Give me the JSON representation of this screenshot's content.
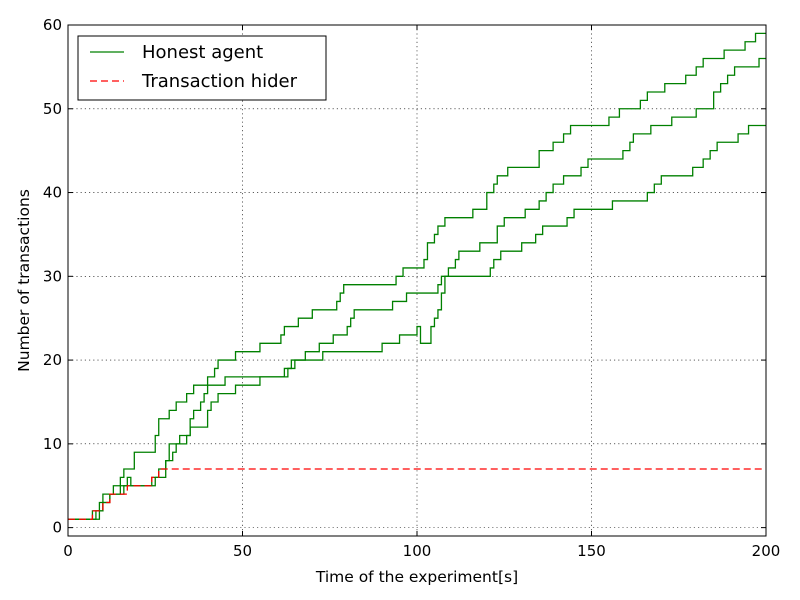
{
  "chart_data": {
    "type": "line",
    "title": "",
    "xlabel": "Time of the experiment[s]",
    "ylabel": "Number of transactions",
    "xlim": [
      0,
      200
    ],
    "ylim": [
      -1,
      60
    ],
    "xticks": [
      0,
      50,
      100,
      150,
      200
    ],
    "yticks": [
      0,
      10,
      20,
      30,
      40,
      50,
      60
    ],
    "grid": true,
    "legend_position": "top-left",
    "legend": [
      {
        "label": "Honest agent",
        "color": "#008000",
        "style": "solid"
      },
      {
        "label": "Transaction hider",
        "color": "#ff0000",
        "style": "dashed"
      }
    ],
    "series": [
      {
        "name": "Honest agent",
        "color": "#008000",
        "style": "solid",
        "step": true,
        "points": [
          [
            0,
            1
          ],
          [
            8,
            1
          ],
          [
            8,
            2
          ],
          [
            10,
            2
          ],
          [
            10,
            4
          ],
          [
            13,
            4
          ],
          [
            13,
            5
          ],
          [
            15,
            5
          ],
          [
            15,
            6
          ],
          [
            16,
            6
          ],
          [
            16,
            7
          ],
          [
            19,
            7
          ],
          [
            19,
            9
          ],
          [
            25,
            9
          ],
          [
            25,
            11
          ],
          [
            26,
            11
          ],
          [
            26,
            13
          ],
          [
            29,
            13
          ],
          [
            29,
            14
          ],
          [
            31,
            14
          ],
          [
            31,
            15
          ],
          [
            34,
            15
          ],
          [
            34,
            16
          ],
          [
            36,
            16
          ],
          [
            36,
            17
          ],
          [
            40,
            17
          ],
          [
            40,
            18
          ],
          [
            42,
            18
          ],
          [
            42,
            19
          ],
          [
            43,
            19
          ],
          [
            43,
            20
          ],
          [
            48,
            20
          ],
          [
            48,
            21
          ],
          [
            55,
            21
          ],
          [
            55,
            22
          ],
          [
            61,
            22
          ],
          [
            61,
            23
          ],
          [
            62,
            23
          ],
          [
            62,
            24
          ],
          [
            66,
            24
          ],
          [
            66,
            25
          ],
          [
            70,
            25
          ],
          [
            70,
            26
          ],
          [
            77,
            26
          ],
          [
            77,
            27
          ],
          [
            78,
            27
          ],
          [
            78,
            28
          ],
          [
            79,
            28
          ],
          [
            79,
            29
          ],
          [
            94,
            29
          ],
          [
            94,
            30
          ],
          [
            96,
            30
          ],
          [
            96,
            31
          ],
          [
            102,
            31
          ],
          [
            102,
            32
          ],
          [
            103,
            32
          ],
          [
            103,
            34
          ],
          [
            105,
            34
          ],
          [
            105,
            35
          ],
          [
            106,
            35
          ],
          [
            106,
            36
          ],
          [
            108,
            36
          ],
          [
            108,
            37
          ],
          [
            116,
            37
          ],
          [
            116,
            38
          ],
          [
            120,
            38
          ],
          [
            120,
            40
          ],
          [
            122,
            40
          ],
          [
            122,
            41
          ],
          [
            123,
            41
          ],
          [
            123,
            42
          ],
          [
            126,
            42
          ],
          [
            126,
            43
          ],
          [
            135,
            43
          ],
          [
            135,
            45
          ],
          [
            139,
            45
          ],
          [
            139,
            46
          ],
          [
            142,
            46
          ],
          [
            142,
            47
          ],
          [
            144,
            47
          ],
          [
            144,
            48
          ],
          [
            155,
            48
          ],
          [
            155,
            49
          ],
          [
            158,
            49
          ],
          [
            158,
            50
          ],
          [
            164,
            50
          ],
          [
            164,
            51
          ],
          [
            166,
            51
          ],
          [
            166,
            52
          ],
          [
            171,
            52
          ],
          [
            171,
            53
          ],
          [
            177,
            53
          ],
          [
            177,
            54
          ],
          [
            180,
            54
          ],
          [
            180,
            55
          ],
          [
            182,
            55
          ],
          [
            182,
            56
          ],
          [
            188,
            56
          ],
          [
            188,
            57
          ],
          [
            194,
            57
          ],
          [
            194,
            58
          ],
          [
            197,
            58
          ],
          [
            197,
            59
          ],
          [
            200,
            59
          ]
        ]
      },
      {
        "name": "",
        "color": "#008000",
        "style": "solid",
        "step": true,
        "points": [
          [
            0,
            1
          ],
          [
            7,
            1
          ],
          [
            7,
            2
          ],
          [
            10,
            2
          ],
          [
            10,
            3
          ],
          [
            12,
            3
          ],
          [
            12,
            4
          ],
          [
            15,
            4
          ],
          [
            15,
            5
          ],
          [
            17,
            5
          ],
          [
            17,
            6
          ],
          [
            18,
            6
          ],
          [
            18,
            5
          ],
          [
            25,
            5
          ],
          [
            25,
            6
          ],
          [
            26,
            6
          ],
          [
            26,
            7
          ],
          [
            28,
            7
          ],
          [
            28,
            8
          ],
          [
            29,
            8
          ],
          [
            29,
            10
          ],
          [
            32,
            10
          ],
          [
            32,
            11
          ],
          [
            35,
            11
          ],
          [
            35,
            13
          ],
          [
            36,
            13
          ],
          [
            36,
            14
          ],
          [
            38,
            14
          ],
          [
            38,
            15
          ],
          [
            39,
            15
          ],
          [
            39,
            16
          ],
          [
            40,
            16
          ],
          [
            40,
            17
          ],
          [
            45,
            17
          ],
          [
            45,
            18
          ],
          [
            62,
            18
          ],
          [
            62,
            19
          ],
          [
            65,
            19
          ],
          [
            65,
            20
          ],
          [
            68,
            20
          ],
          [
            68,
            21
          ],
          [
            72,
            21
          ],
          [
            72,
            22
          ],
          [
            76,
            22
          ],
          [
            76,
            23
          ],
          [
            80,
            23
          ],
          [
            80,
            24
          ],
          [
            81,
            24
          ],
          [
            81,
            25
          ],
          [
            82,
            25
          ],
          [
            82,
            26
          ],
          [
            93,
            26
          ],
          [
            93,
            27
          ],
          [
            97,
            27
          ],
          [
            97,
            28
          ],
          [
            106,
            28
          ],
          [
            106,
            29
          ],
          [
            107,
            29
          ],
          [
            107,
            30
          ],
          [
            109,
            30
          ],
          [
            109,
            31
          ],
          [
            111,
            31
          ],
          [
            111,
            32
          ],
          [
            112,
            32
          ],
          [
            112,
            33
          ],
          [
            118,
            33
          ],
          [
            118,
            34
          ],
          [
            123,
            34
          ],
          [
            123,
            36
          ],
          [
            125,
            36
          ],
          [
            125,
            37
          ],
          [
            131,
            37
          ],
          [
            131,
            38
          ],
          [
            135,
            38
          ],
          [
            135,
            39
          ],
          [
            137,
            39
          ],
          [
            137,
            40
          ],
          [
            139,
            40
          ],
          [
            139,
            41
          ],
          [
            142,
            41
          ],
          [
            142,
            42
          ],
          [
            147,
            42
          ],
          [
            147,
            43
          ],
          [
            149,
            43
          ],
          [
            149,
            44
          ],
          [
            159,
            44
          ],
          [
            159,
            45
          ],
          [
            161,
            45
          ],
          [
            161,
            46
          ],
          [
            162,
            46
          ],
          [
            162,
            47
          ],
          [
            167,
            47
          ],
          [
            167,
            48
          ],
          [
            173,
            48
          ],
          [
            173,
            49
          ],
          [
            180,
            49
          ],
          [
            180,
            50
          ],
          [
            185,
            50
          ],
          [
            185,
            52
          ],
          [
            187,
            52
          ],
          [
            187,
            53
          ],
          [
            189,
            53
          ],
          [
            189,
            54
          ],
          [
            191,
            54
          ],
          [
            191,
            55
          ],
          [
            198,
            55
          ],
          [
            198,
            56
          ],
          [
            200,
            56
          ]
        ]
      },
      {
        "name": "",
        "color": "#008000",
        "style": "solid",
        "step": true,
        "points": [
          [
            0,
            1
          ],
          [
            9,
            1
          ],
          [
            9,
            3
          ],
          [
            12,
            3
          ],
          [
            12,
            4
          ],
          [
            16,
            4
          ],
          [
            16,
            5
          ],
          [
            24,
            5
          ],
          [
            24,
            6
          ],
          [
            28,
            6
          ],
          [
            28,
            8
          ],
          [
            30,
            8
          ],
          [
            30,
            9
          ],
          [
            31,
            9
          ],
          [
            31,
            10
          ],
          [
            34,
            10
          ],
          [
            34,
            11
          ],
          [
            35,
            11
          ],
          [
            35,
            12
          ],
          [
            40,
            12
          ],
          [
            40,
            14
          ],
          [
            41,
            14
          ],
          [
            41,
            15
          ],
          [
            43,
            15
          ],
          [
            43,
            16
          ],
          [
            48,
            16
          ],
          [
            48,
            17
          ],
          [
            55,
            17
          ],
          [
            55,
            18
          ],
          [
            63,
            18
          ],
          [
            63,
            19
          ],
          [
            64,
            19
          ],
          [
            64,
            20
          ],
          [
            73,
            20
          ],
          [
            73,
            21
          ],
          [
            90,
            21
          ],
          [
            90,
            22
          ],
          [
            95,
            22
          ],
          [
            95,
            23
          ],
          [
            100,
            23
          ],
          [
            100,
            24
          ],
          [
            101,
            24
          ],
          [
            101,
            22
          ],
          [
            104,
            22
          ],
          [
            104,
            24
          ],
          [
            105,
            24
          ],
          [
            105,
            25
          ],
          [
            106,
            25
          ],
          [
            106,
            26
          ],
          [
            107,
            26
          ],
          [
            107,
            28
          ],
          [
            108,
            28
          ],
          [
            108,
            30
          ],
          [
            121,
            30
          ],
          [
            121,
            31
          ],
          [
            122,
            31
          ],
          [
            122,
            32
          ],
          [
            124,
            32
          ],
          [
            124,
            33
          ],
          [
            130,
            33
          ],
          [
            130,
            34
          ],
          [
            134,
            34
          ],
          [
            134,
            35
          ],
          [
            136,
            35
          ],
          [
            136,
            36
          ],
          [
            143,
            36
          ],
          [
            143,
            37
          ],
          [
            145,
            37
          ],
          [
            145,
            38
          ],
          [
            156,
            38
          ],
          [
            156,
            39
          ],
          [
            166,
            39
          ],
          [
            166,
            40
          ],
          [
            168,
            40
          ],
          [
            168,
            41
          ],
          [
            170,
            41
          ],
          [
            170,
            42
          ],
          [
            179,
            42
          ],
          [
            179,
            43
          ],
          [
            182,
            43
          ],
          [
            182,
            44
          ],
          [
            184,
            44
          ],
          [
            184,
            45
          ],
          [
            186,
            45
          ],
          [
            186,
            46
          ],
          [
            192,
            46
          ],
          [
            192,
            47
          ],
          [
            195,
            47
          ],
          [
            195,
            48
          ],
          [
            200,
            48
          ]
        ]
      },
      {
        "name": "Transaction hider",
        "color": "#ff0000",
        "style": "dashed",
        "step": true,
        "points": [
          [
            0,
            1
          ],
          [
            7,
            1
          ],
          [
            7,
            2
          ],
          [
            10,
            2
          ],
          [
            10,
            3
          ],
          [
            12,
            3
          ],
          [
            12,
            4
          ],
          [
            17,
            4
          ],
          [
            17,
            5
          ],
          [
            24,
            5
          ],
          [
            24,
            6
          ],
          [
            26,
            6
          ],
          [
            26,
            7
          ],
          [
            200,
            7
          ]
        ]
      }
    ]
  }
}
